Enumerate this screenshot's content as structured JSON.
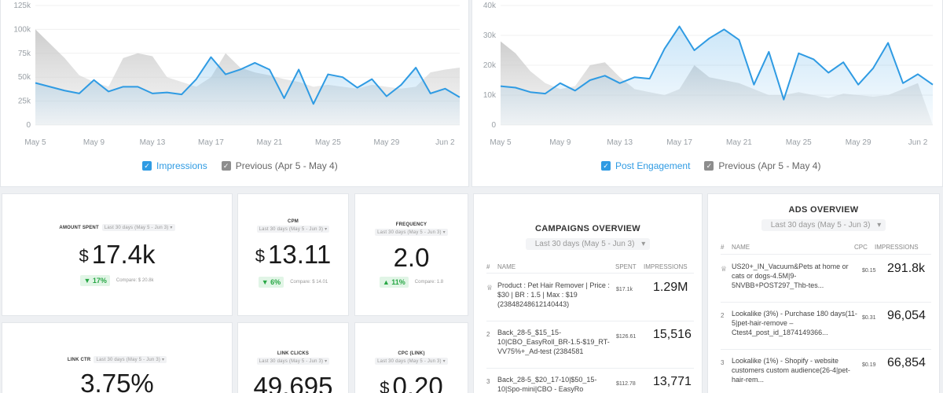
{
  "charts": [
    {
      "y_ticks": [
        "125k",
        "100k",
        "75k",
        "50k",
        "25k",
        "0"
      ],
      "x_ticks": [
        "May 5",
        "May 9",
        "May 13",
        "May 17",
        "May 21",
        "May 25",
        "May 29",
        "Jun 2"
      ],
      "legend_current": "Impressions",
      "legend_previous": "Previous (Apr 5 - May 4)",
      "colors": {
        "current": "#2f9be3",
        "previous": "#c9c9c9"
      },
      "chart_data": {
        "type": "line",
        "ylim": [
          0,
          125000
        ],
        "x": [
          "May 5",
          "May 6",
          "May 7",
          "May 8",
          "May 9",
          "May 10",
          "May 11",
          "May 12",
          "May 13",
          "May 14",
          "May 15",
          "May 16",
          "May 17",
          "May 18",
          "May 19",
          "May 20",
          "May 21",
          "May 22",
          "May 23",
          "May 24",
          "May 25",
          "May 26",
          "May 27",
          "May 28",
          "May 29",
          "May 30",
          "May 31",
          "Jun 1",
          "Jun 2",
          "Jun 3"
        ],
        "series": [
          {
            "name": "Impressions",
            "values": [
              44000,
              40000,
              36000,
              33000,
              47000,
              35000,
              40000,
              40000,
              33000,
              34000,
              32000,
              48000,
              71000,
              53000,
              58000,
              65000,
              58000,
              28000,
              58000,
              22000,
              53000,
              50000,
              39000,
              48000,
              30000,
              42000,
              60000,
              33000,
              38000,
              29000
            ]
          },
          {
            "name": "Previous (Apr 5 - May 4)",
            "values": [
              100000,
              85000,
              70000,
              52000,
              45000,
              40000,
              70000,
              75000,
              72000,
              50000,
              45000,
              40000,
              50000,
              75000,
              60000,
              55000,
              52000,
              48000,
              45000,
              40000,
              42000,
              40000,
              38000,
              42000,
              40000,
              38000,
              40000,
              55000,
              58000,
              60000
            ]
          }
        ]
      }
    },
    {
      "y_ticks": [
        "40k",
        "30k",
        "20k",
        "10k",
        "0"
      ],
      "x_ticks": [
        "May 5",
        "May 9",
        "May 13",
        "May 17",
        "May 21",
        "May 25",
        "May 29",
        "Jun 2"
      ],
      "legend_current": "Post Engagement",
      "legend_previous": "Previous (Apr 5 - May 4)",
      "colors": {
        "current": "#2f9be3",
        "previous": "#c9c9c9"
      },
      "chart_data": {
        "type": "line",
        "ylim": [
          0,
          40000
        ],
        "x": [
          "May 5",
          "May 6",
          "May 7",
          "May 8",
          "May 9",
          "May 10",
          "May 11",
          "May 12",
          "May 13",
          "May 14",
          "May 15",
          "May 16",
          "May 17",
          "May 18",
          "May 19",
          "May 20",
          "May 21",
          "May 22",
          "May 23",
          "May 24",
          "May 25",
          "May 26",
          "May 27",
          "May 28",
          "May 29",
          "May 30",
          "May 31",
          "Jun 1",
          "Jun 2",
          "Jun 3"
        ],
        "series": [
          {
            "name": "Post Engagement",
            "values": [
              13000,
              12500,
              11000,
              10500,
              14000,
              11500,
              15000,
              16500,
              14000,
              16000,
              15500,
              25500,
              33000,
              25000,
              29000,
              32000,
              28500,
              13500,
              24500,
              8500,
              24000,
              22000,
              17500,
              21000,
              13500,
              19000,
              27500,
              14000,
              17000,
              13500
            ]
          },
          {
            "name": "Previous (Apr 5 - May 4)",
            "values": [
              28000,
              24000,
              18000,
              14000,
              12000,
              13000,
              20000,
              21000,
              16000,
              12000,
              11000,
              10000,
              12000,
              20000,
              16000,
              15000,
              14000,
              12000,
              10000,
              10000,
              11000,
              10000,
              9000,
              10500,
              10000,
              9500,
              10000,
              12000,
              14000,
              0
            ]
          }
        ]
      }
    }
  ],
  "metrics": [
    {
      "title": "AMOUNT SPENT",
      "period": "Last 30 days (May 5 - Jun 3)",
      "currency": "$",
      "value": "17.4k",
      "change": "▼ 17%",
      "compare": "Compare: $ 20.8k"
    },
    {
      "title": "CPM",
      "period": "Last 30 days (May 5 - Jun 3)",
      "currency": "$",
      "value": "13.11",
      "change": "▼ 6%",
      "compare": "Compare: $ 14.01"
    },
    {
      "title": "FREQUENCY",
      "period": "Last 30 days (May 5 - Jun 3)",
      "currency": "",
      "value": "2.0",
      "change": "▲ 11%",
      "compare": "Compare: 1.8"
    },
    {
      "title": "LINK CTR",
      "period": "Last 30 days (May 5 - Jun 3)",
      "currency": "",
      "value": "3.75%"
    },
    {
      "title": "LINK CLICKS",
      "period": "Last 30 days (May 5 - Jun 3)",
      "currency": "",
      "value": "49,695"
    },
    {
      "title": "CPC (LINK)",
      "period": "Last 30 days (May 5 - Jun 3)",
      "currency": "$",
      "value": "0.20"
    }
  ],
  "campaigns": {
    "title": "CAMPAIGNS OVERVIEW",
    "period": "Last 30 days (May 5 - Jun 3)",
    "headers": {
      "idx": "#",
      "name": "NAME",
      "spent": "SPENT",
      "impressions": "IMPRESSIONS"
    },
    "rows": [
      {
        "idx": "1",
        "name": "Product : Pet Hair Remover | Price : $30 | BR : 1.5 | Max : $19 (23848248612140443)",
        "spent": "$17.1k",
        "impressions": "1.29M"
      },
      {
        "idx": "2",
        "name": "Back_28-5_$15_15-10|CBO_EasyRoll_BR-1.5-$19_RT-VV75%+_Ad-test (2384581",
        "spent": "$126.61",
        "impressions": "15,516"
      },
      {
        "idx": "3",
        "name": "Back_28-5_$20_17-10|$50_15-10|Spo-mini|CBO - EasyRo",
        "spent": "$112.78",
        "impressions": "13,771"
      }
    ]
  },
  "ads": {
    "title": "ADS OVERVIEW",
    "period": "Last 30 days (May 5 - Jun 3)",
    "headers": {
      "idx": "#",
      "name": "NAME",
      "cpc": "CPC",
      "impressions": "IMPRESSIONS"
    },
    "rows": [
      {
        "idx": "1",
        "name": "US20+_IN_Vacuum&Pets at home or cats or dogs-4.5M|9-5NVBB+POST297_Thb-tes...",
        "cpc": "$0.15",
        "impressions": "291.8k"
      },
      {
        "idx": "2",
        "name": "Lookalike (3%) - Purchase 180 days(11-5|pet-hair-remove – Ctest4_post_id_1874149366...",
        "cpc": "$0.31",
        "impressions": "96,054"
      },
      {
        "idx": "3",
        "name": "Lookalike (1%) - Shopify - website customers custom audience(26-4|pet-hair-rem...",
        "cpc": "$0.19",
        "impressions": "66,854"
      }
    ]
  }
}
